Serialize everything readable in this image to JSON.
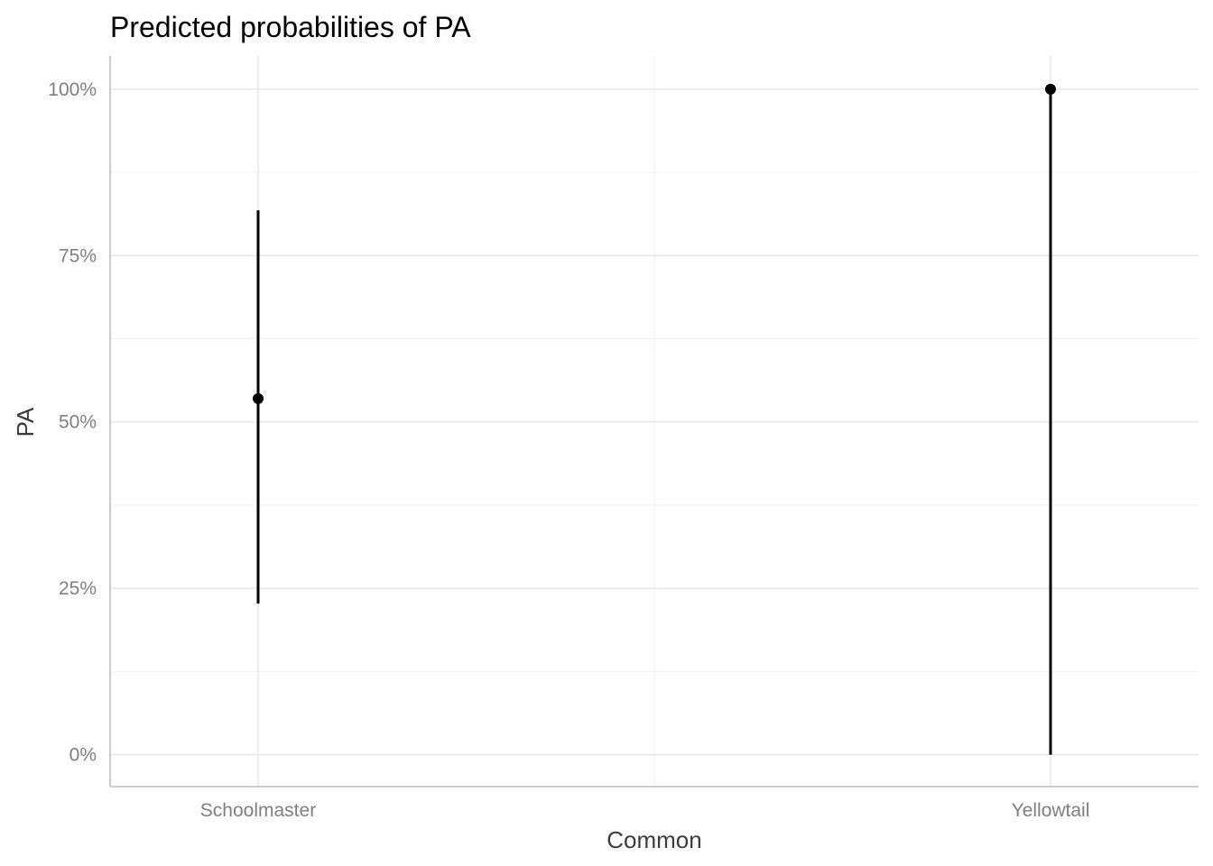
{
  "chart_data": {
    "type": "errorbar",
    "title": "Predicted probabilities of PA",
    "xlabel": "Common",
    "ylabel": "PA",
    "categories": [
      "Schoolmaster",
      "Yellowtail"
    ],
    "points": [
      {
        "category": "Schoolmaster",
        "estimate": 0.535,
        "ci_low": 0.227,
        "ci_high": 0.818
      },
      {
        "category": "Yellowtail",
        "estimate": 1.0,
        "ci_low": 0.0,
        "ci_high": 1.0
      }
    ],
    "ylim": [
      -0.048,
      1.05
    ],
    "y_ticks": [
      0,
      0.25,
      0.5,
      0.75,
      1.0
    ],
    "y_tick_labels": [
      "0%",
      "25%",
      "50%",
      "75%",
      "100%"
    ],
    "y_minor_ticks": [
      0.125,
      0.375,
      0.625,
      0.875
    ],
    "grid": true,
    "colors": {
      "marks": "#000000",
      "grid": "#e5e5e5",
      "tick_text": "#7f7f7f"
    }
  }
}
